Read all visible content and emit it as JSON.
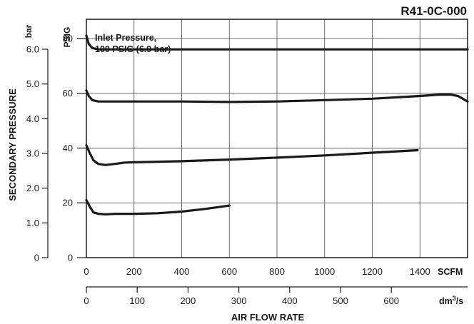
{
  "chart_data": {
    "type": "line",
    "title": "R41-0C-000",
    "annotation": "Inlet Pressure,\n100 PSIG (6.9 bar)",
    "xlabel": "AIR FLOW RATE",
    "ylabel": "SECONDARY PRESSURE",
    "x_axis_scfm": {
      "unit": "SCFM",
      "range": [
        0,
        1600
      ],
      "ticks": [
        0,
        200,
        400,
        600,
        800,
        1000,
        1200,
        1400
      ]
    },
    "x_axis_dm3s": {
      "unit": "dm3/s",
      "unit_main": "dm",
      "unit_sup": "3",
      "unit_tail": "/s",
      "range": [
        0,
        750
      ],
      "ticks": [
        0,
        100,
        200,
        300,
        400,
        500,
        600
      ]
    },
    "y_axis_psig": {
      "unit": "PSIG",
      "range": [
        0,
        87
      ],
      "ticks": [
        0,
        20,
        40,
        60,
        80
      ]
    },
    "y_axis_bar": {
      "unit": "bar",
      "range": [
        0,
        6.0
      ],
      "ticks": [
        "0",
        "1.0",
        "2.0",
        "3.0",
        "4.0",
        "5.0",
        "6.0"
      ]
    },
    "grid": true,
    "series": [
      {
        "x": [
          0,
          10,
          25,
          50,
          100,
          200,
          400,
          600,
          800,
          1000,
          1200,
          1400,
          1600
        ],
        "y": [
          81,
          78,
          76.5,
          76,
          76,
          76,
          76,
          76,
          76,
          76,
          76,
          76,
          76
        ]
      },
      {
        "x": [
          0,
          10,
          25,
          50,
          100,
          200,
          400,
          600,
          800,
          1000,
          1200,
          1400,
          1480,
          1530,
          1560,
          1600
        ],
        "y": [
          61,
          59,
          57.5,
          57,
          57,
          57,
          57,
          56.8,
          57,
          57.5,
          58,
          59,
          59.5,
          59.5,
          59,
          57
        ]
      },
      {
        "x": [
          0,
          15,
          30,
          50,
          80,
          120,
          160,
          200,
          400,
          600,
          800,
          1000,
          1200,
          1390
        ],
        "y": [
          41,
          38,
          35.5,
          34.2,
          33.8,
          34.2,
          34.7,
          34.8,
          35.2,
          35.8,
          36.5,
          37.3,
          38.3,
          39.2
        ]
      },
      {
        "x": [
          0,
          15,
          30,
          50,
          80,
          120,
          160,
          200,
          300,
          400,
          500,
          600
        ],
        "y": [
          21,
          18.5,
          16.5,
          16,
          15.8,
          16,
          16,
          16,
          16.2,
          16.8,
          17.8,
          19
        ]
      }
    ]
  }
}
